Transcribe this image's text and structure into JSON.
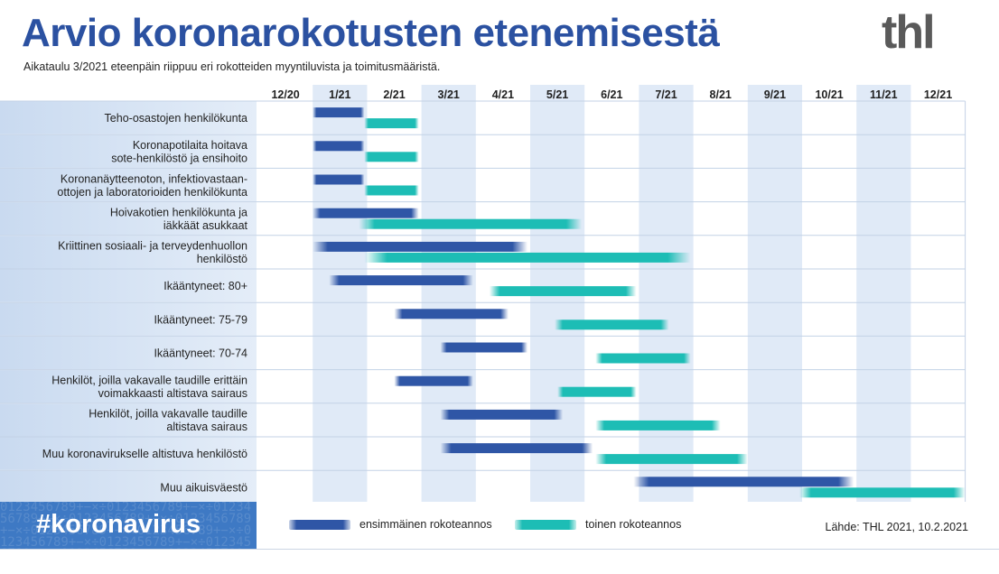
{
  "header": {
    "title": "Arvio koronarokotusten etenemisestä",
    "subtitle": "Aikataulu 3/2021 eteenpäin riippuu eri rokotteiden myyntiluvista ja toimitusmääristä.",
    "logo_text": "thl"
  },
  "footer": {
    "hashtag": "#koronavirus",
    "source": "Lähde: THL 2021, 10.2.2021"
  },
  "colors": {
    "first_dose": "#2f56a6",
    "second_dose": "#1dbdb5",
    "title": "#2b51a1",
    "row_label_bg": "#dce7f5",
    "shaded_month": "#e0eaf7"
  },
  "chart_data": {
    "type": "gantt",
    "months": [
      "12/20",
      "1/21",
      "2/21",
      "3/21",
      "4/21",
      "5/21",
      "6/21",
      "7/21",
      "8/21",
      "9/21",
      "10/21",
      "11/21",
      "12/21"
    ],
    "shaded_months": [
      "1/21",
      "3/21",
      "5/21",
      "7/21",
      "9/21",
      "11/21"
    ],
    "legend": [
      {
        "key": "first",
        "label": "ensimmäinen rokoteannos"
      },
      {
        "key": "second",
        "label": "toinen rokoteannos"
      }
    ],
    "rows": [
      {
        "label": "Teho-osastojen henkilökunta",
        "first": [
          1.0,
          1.95
        ],
        "second": [
          1.95,
          2.95
        ]
      },
      {
        "label": "Koronapotilaita hoitava\nsote-henkilöstö ja ensihoito",
        "first": [
          1.0,
          1.95
        ],
        "second": [
          1.95,
          2.95
        ]
      },
      {
        "label": "Koronanäytteenoton, infektiovastaan-\nottojen ja laboratorioiden henkilökunta",
        "first": [
          1.0,
          1.95
        ],
        "second": [
          1.95,
          2.95
        ]
      },
      {
        "label": "Hoivakotien henkilökunta ja\niäkkäät asukkaat",
        "first": [
          1.0,
          2.95
        ],
        "second": [
          1.85,
          5.95
        ]
      },
      {
        "label": "Kriittinen sosiaali- ja terveydenhuollon\nhenkilöstö",
        "first": [
          1.0,
          4.95
        ],
        "second": [
          1.95,
          7.95
        ]
      },
      {
        "label": "Ikääntyneet: 80+",
        "first": [
          1.3,
          3.95
        ],
        "second": [
          4.25,
          6.95
        ]
      },
      {
        "label": "Ikääntyneet: 75-79",
        "first": [
          2.5,
          4.6
        ],
        "second": [
          5.45,
          7.55
        ]
      },
      {
        "label": "Ikääntyneet: 70-74",
        "first": [
          3.35,
          4.95
        ],
        "second": [
          6.2,
          7.95
        ]
      },
      {
        "label": "Henkilöt, joilla vakavalle taudille erittäin\nvoimakkaasti altistava sairaus",
        "first": [
          2.5,
          3.95
        ],
        "second": [
          5.5,
          6.95
        ]
      },
      {
        "label": "Henkilöt, joilla vakavalle taudille\naltistava sairaus",
        "first": [
          3.35,
          5.6
        ],
        "second": [
          6.2,
          8.5
        ]
      },
      {
        "label": "Muu koronavirukselle altistuva henkilöstö",
        "first": [
          3.35,
          6.15
        ],
        "second": [
          6.2,
          9.0
        ]
      },
      {
        "label": "Muu aikuisväestö",
        "first": [
          6.9,
          10.95
        ],
        "second": [
          9.95,
          13.0
        ]
      }
    ]
  }
}
